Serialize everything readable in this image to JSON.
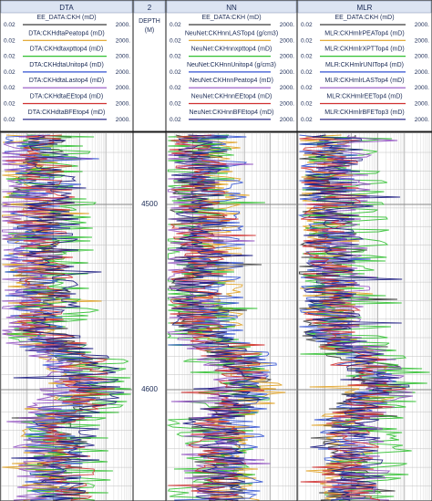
{
  "tracks": [
    {
      "title": "DTA",
      "curves": [
        {
          "name": "EE_DATA:CKH (mD)",
          "left": "0.02",
          "right": "2000.",
          "color": "#3a3a3a"
        },
        {
          "name": "DTA:CKHdtaPeatop4 (mD)",
          "left": "0.02",
          "right": "2000.",
          "color": "#e0a020"
        },
        {
          "name": "DTA:CKHdtaxpttop4 (mD)",
          "left": "0.02",
          "right": "2000.",
          "color": "#30c030"
        },
        {
          "name": "DTA:CKHdtaUnitop4 (mD)",
          "left": "0.02",
          "right": "2000.",
          "color": "#3050d0"
        },
        {
          "name": "DTA:CKHdtaLastop4 (mD)",
          "left": "0.02",
          "right": "2000.",
          "color": "#9050c0"
        },
        {
          "name": "DTA:CKHdtaEEtop4 (mD)",
          "left": "0.02",
          "right": "2000.",
          "color": "#d03030"
        },
        {
          "name": "DTA:CKHdtaBFEtop4 (mD)",
          "left": "0.02",
          "right": "2000.",
          "color": "#1a1a80"
        }
      ]
    },
    {
      "title": "NN",
      "curves": [
        {
          "name": "EE_DATA:CKH (mD)",
          "left": "0.02",
          "right": "2000.",
          "color": "#3a3a3a"
        },
        {
          "name": "NeuNet:CKHnnLASTop4 (g/cm3)",
          "left": "0.02",
          "right": "2000.",
          "color": "#e0a020"
        },
        {
          "name": "NeuNet:CKHnnxpttop4 (mD)",
          "left": "0.02",
          "right": "2000.",
          "color": "#30c030"
        },
        {
          "name": "NeuNet:CKHnnUnitop4 (g/cm3)",
          "left": "0.02",
          "right": "2000.",
          "color": "#3050d0"
        },
        {
          "name": "NeuNet:CKHnnPeatop4 (mD)",
          "left": "0.02",
          "right": "2000.",
          "color": "#9050c0"
        },
        {
          "name": "NeuNet:CKHnnEEtop4 (mD)",
          "left": "0.02",
          "right": "2000.",
          "color": "#d03030"
        },
        {
          "name": "NeuNet:CKHnnBFEtop4 (mD)",
          "left": "0.02",
          "right": "2000.",
          "color": "#1a1a80"
        }
      ]
    },
    {
      "title": "MLR",
      "curves": [
        {
          "name": "EE_DATA:CKH (mD)",
          "left": "0.02",
          "right": "2000.",
          "color": "#3a3a3a"
        },
        {
          "name": "MLR:CKHmlrPEATop4 (mD)",
          "left": "0.02",
          "right": "2000.",
          "color": "#e0a020"
        },
        {
          "name": "MLR:CKHmlrXPTTop4 (mD)",
          "left": "0.02",
          "right": "2000.",
          "color": "#30c030"
        },
        {
          "name": "MLR:CKHmlrUNITop4 (mD)",
          "left": "0.02",
          "right": "2000.",
          "color": "#3050d0"
        },
        {
          "name": "MLR:CKHmlrLASTop4 (mD)",
          "left": "0.02",
          "right": "2000.",
          "color": "#9050c0"
        },
        {
          "name": "MLR:CKHmlrEETop4 (mD)",
          "left": "0.02",
          "right": "2000.",
          "color": "#d03030"
        },
        {
          "name": "MLR:CKHmlrBFETop3 (mD)",
          "left": "0.02",
          "right": "2000.",
          "color": "#1a1a80"
        }
      ]
    }
  ],
  "depth_track": {
    "title": "2",
    "label": "DEPTH",
    "unit": "(M)"
  },
  "depth_labels": [
    "4500",
    "4600"
  ],
  "scale": "logarithmic",
  "colors": {
    "header_bg": "#dce4f2",
    "text": "#1a2a55",
    "grid": "#c8c8c8",
    "border": "#1a1a1a"
  }
}
